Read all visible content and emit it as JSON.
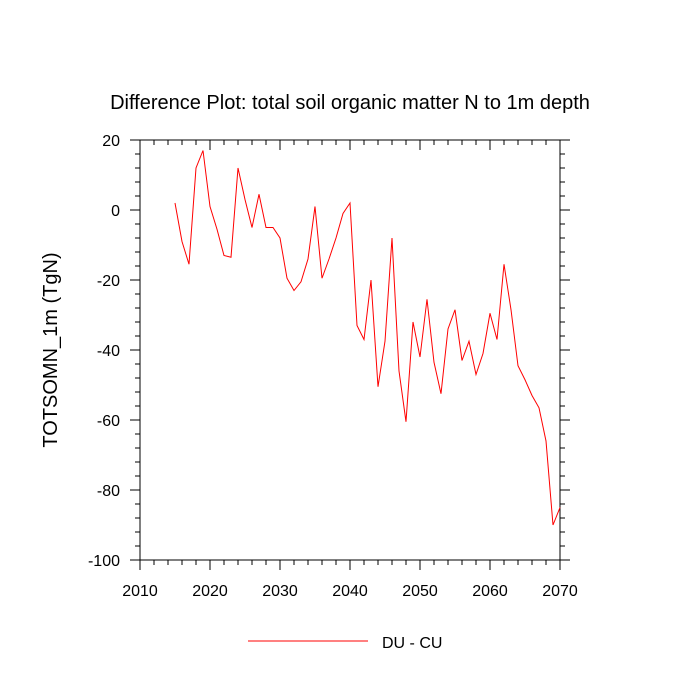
{
  "chart_data": {
    "type": "line",
    "title": "Difference Plot: total soil organic matter N to 1m depth",
    "xlabel": "",
    "ylabel": "TOTSOMN_1m  (TgN)",
    "xlim": [
      2010,
      2070
    ],
    "ylim": [
      -100,
      20
    ],
    "x_ticks": [
      2010,
      2020,
      2030,
      2040,
      2050,
      2060,
      2070
    ],
    "y_ticks": [
      20,
      0,
      -20,
      -40,
      -60,
      -80,
      -100
    ],
    "x_tick_labels": [
      "2010",
      "2020",
      "2030",
      "2040",
      "2050",
      "2060",
      "2070"
    ],
    "y_tick_labels": [
      "20",
      "0",
      "-20",
      "-40",
      "-60",
      "-80",
      "-100"
    ],
    "grid": false,
    "legend_position": "bottom-center",
    "series": [
      {
        "name": "DU - CU",
        "color": "#ff0000",
        "x": [
          2015,
          2016,
          2017,
          2018,
          2019,
          2020,
          2021,
          2022,
          2023,
          2024,
          2025,
          2026,
          2027,
          2028,
          2029,
          2030,
          2031,
          2032,
          2033,
          2034,
          2035,
          2036,
          2037,
          2038,
          2039,
          2040,
          2041,
          2042,
          2043,
          2044,
          2045,
          2046,
          2047,
          2048,
          2049,
          2050,
          2051,
          2052,
          2053,
          2054,
          2055,
          2056,
          2057,
          2058,
          2059,
          2060,
          2061,
          2062,
          2063,
          2064,
          2065,
          2066,
          2067,
          2068,
          2069,
          2070
        ],
        "values": [
          2,
          -9,
          -15.5,
          12,
          17,
          1,
          -5.5,
          -13,
          -13.5,
          12,
          3,
          -5,
          4.5,
          -5,
          -5,
          -8,
          -19.5,
          -23,
          -20.5,
          -14,
          1,
          -19.5,
          -14,
          -8,
          -1,
          2,
          -33,
          -37,
          -20,
          -50.5,
          -37.5,
          -8,
          -46,
          -60.5,
          -32,
          -42,
          -25.5,
          -43.5,
          -52.5,
          -34,
          -28.5,
          -43,
          -37.5,
          -47,
          -41,
          -29.5,
          -37,
          -15.5,
          -28.5,
          -44.5,
          -48.5,
          -53,
          -56.5,
          -66,
          -90,
          -85
        ]
      }
    ]
  }
}
